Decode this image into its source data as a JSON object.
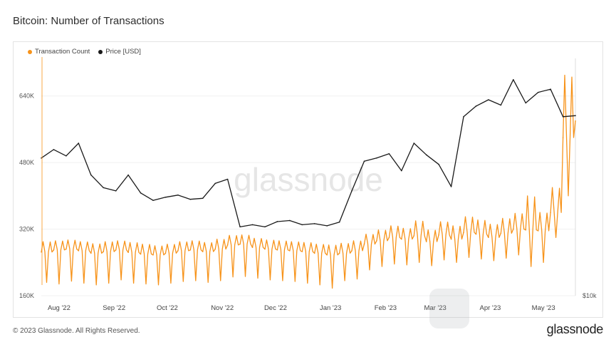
{
  "page": {
    "title": "Bitcoin: Number of Transactions",
    "copyright": "© 2023 Glassnode. All Rights Reserved.",
    "logo": "glassnode",
    "watermark": "glassnode"
  },
  "chart_data": {
    "type": "line",
    "title": "Bitcoin: Number of Transactions",
    "legend": [
      "Transaction Count",
      "Price [USD]"
    ],
    "legend_position": "top-left",
    "grid": true,
    "x_tick_labels": [
      "Aug '22",
      "Sep '22",
      "Oct '22",
      "Nov '22",
      "Dec '22",
      "Jan '23",
      "Feb '23",
      "Mar '23",
      "Apr '23",
      "May '23"
    ],
    "y_left_ticks": [
      "160K",
      "320K",
      "480K",
      "640K"
    ],
    "y_left_range": [
      160000,
      720000
    ],
    "y_right_ticks": [
      "$10k"
    ],
    "x_range": [
      "2022-07-22",
      "2023-05-19"
    ],
    "colors": {
      "transaction_count": "#f7931a",
      "price": "#1a1a1a"
    },
    "series": [
      {
        "name": "Transaction Count",
        "x": [
          "2022-07-22",
          "2022-07-29",
          "2022-08-05",
          "2022-08-12",
          "2022-08-19",
          "2022-08-26",
          "2022-09-02",
          "2022-09-09",
          "2022-09-16",
          "2022-09-23",
          "2022-09-30",
          "2022-10-07",
          "2022-10-14",
          "2022-10-21",
          "2022-10-28",
          "2022-11-04",
          "2022-11-11",
          "2022-11-18",
          "2022-11-25",
          "2022-12-02",
          "2022-12-09",
          "2022-12-16",
          "2022-12-23",
          "2022-12-30",
          "2023-01-06",
          "2023-01-13",
          "2023-01-20",
          "2023-01-27",
          "2023-02-03",
          "2023-02-10",
          "2023-02-17",
          "2023-02-24",
          "2023-03-03",
          "2023-03-10",
          "2023-03-17",
          "2023-03-24",
          "2023-03-31",
          "2023-04-07",
          "2023-04-14",
          "2023-04-21",
          "2023-04-28",
          "2023-05-05",
          "2023-05-12",
          "2023-05-19"
        ],
        "values": [
          265000,
          270000,
          272000,
          268000,
          262000,
          266000,
          270000,
          264000,
          260000,
          258000,
          262000,
          268000,
          270000,
          266000,
          272000,
          282000,
          284000,
          276000,
          272000,
          270000,
          268000,
          266000,
          262000,
          258000,
          262000,
          268000,
          284000,
          292000,
          300000,
          296000,
          304000,
          290000,
          306000,
          296000,
          312000,
          308000,
          300000,
          310000,
          320000,
          318000,
          316000,
          360000,
          540000,
          580000
        ],
        "weekly_low": [
          192000,
          188000,
          195000,
          190000,
          186000,
          190000,
          198000,
          190000,
          188000,
          186000,
          190000,
          194000,
          196000,
          192000,
          196000,
          205000,
          206000,
          202000,
          198000,
          196000,
          194000,
          190000,
          186000,
          178000,
          196000,
          200000,
          222000,
          230000,
          236000,
          234000,
          240000,
          232000,
          246000,
          240000,
          252000,
          248000,
          244000,
          250000,
          258000,
          230000,
          240000,
          300000,
          400000,
          480000
        ],
        "weekly_high": [
          290000,
          292000,
          294000,
          290000,
          285000,
          290000,
          292000,
          288000,
          284000,
          280000,
          284000,
          290000,
          292000,
          288000,
          296000,
          305000,
          306000,
          298000,
          294000,
          292000,
          290000,
          288000,
          284000,
          282000,
          286000,
          292000,
          308000,
          318000,
          328000,
          322000,
          340000,
          318000,
          338000,
          328000,
          350000,
          342000,
          332000,
          346000,
          358000,
          400000,
          360000,
          420000,
          690000,
          680000
        ]
      },
      {
        "name": "Price [USD]",
        "x": [
          "2022-07-22",
          "2022-07-29",
          "2022-08-05",
          "2022-08-12",
          "2022-08-19",
          "2022-08-26",
          "2022-09-02",
          "2022-09-09",
          "2022-09-16",
          "2022-09-23",
          "2022-09-30",
          "2022-10-07",
          "2022-10-14",
          "2022-10-21",
          "2022-10-28",
          "2022-11-04",
          "2022-11-11",
          "2022-11-18",
          "2022-11-25",
          "2022-12-02",
          "2022-12-09",
          "2022-12-16",
          "2022-12-23",
          "2022-12-30",
          "2023-01-06",
          "2023-01-13",
          "2023-01-20",
          "2023-01-27",
          "2023-02-03",
          "2023-02-10",
          "2023-02-17",
          "2023-02-24",
          "2023-03-03",
          "2023-03-10",
          "2023-03-17",
          "2023-03-24",
          "2023-03-31",
          "2023-04-07",
          "2023-04-14",
          "2023-04-21",
          "2023-04-28",
          "2023-05-05",
          "2023-05-12",
          "2023-05-19"
        ],
        "values": [
          23000,
          23800,
          23200,
          24400,
          21400,
          20200,
          19900,
          21400,
          19700,
          19000,
          19300,
          19500,
          19100,
          19200,
          20600,
          21000,
          16500,
          16700,
          16500,
          17000,
          17100,
          16700,
          16800,
          16600,
          16950,
          19900,
          22700,
          23000,
          23400,
          21800,
          24400,
          23300,
          22400,
          20300,
          26900,
          27900,
          28500,
          28000,
          30400,
          28200,
          29200,
          29500,
          26900,
          27000
        ]
      }
    ]
  }
}
